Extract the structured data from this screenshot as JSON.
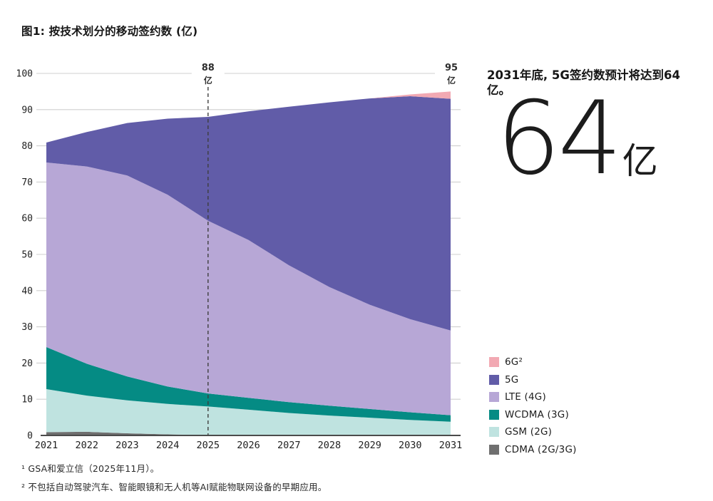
{
  "title": "图1: 按技术划分的移动签约数 (亿)",
  "highlight": {
    "headline": "2031年底, 5G签约数预计将达到64亿。",
    "big_number": "64",
    "big_unit": "亿"
  },
  "footnotes": [
    "¹ GSA和爱立信（2025年11月）。",
    "² 不包括自动驾驶汽车、智能眼镜和无人机等AI赋能物联网设备的早期应用。"
  ],
  "colors": {
    "sixg": "#F2A9B3",
    "fiveg": "#615CA8",
    "lte": "#B7A7D6",
    "wcdma": "#058B84",
    "gsm": "#BFE3E0",
    "cdma": "#6F6F6F",
    "axis": "#4B4B4B",
    "grid": "#CFCFCF",
    "dash": "#3D3D3D",
    "tick_text": "#1F1F1F"
  },
  "chart_data": {
    "type": "area",
    "stacked": true,
    "title": "图1: 按技术划分的移动签约数 (亿)",
    "xlabel": "",
    "ylabel": "",
    "ylim": [
      0,
      100
    ],
    "yticks": [
      0,
      10,
      20,
      30,
      40,
      50,
      60,
      70,
      80,
      90,
      100
    ],
    "grid": "ticks-both-sides, full line at 100",
    "legend_position": "right-bottom",
    "x": [
      2021,
      2022,
      2023,
      2024,
      2025,
      2026,
      2027,
      2028,
      2029,
      2030,
      2031
    ],
    "series": [
      {
        "key": "cdma",
        "name": "CDMA (2G/3G)",
        "color": "#6F6F6F",
        "values": [
          0.9,
          1.0,
          0.6,
          0.3,
          0.1,
          0,
          0,
          0,
          0,
          0,
          0
        ]
      },
      {
        "key": "gsm",
        "name": "GSM (2G)",
        "color": "#BFE3E0",
        "values": [
          11.9,
          10.0,
          9.1,
          8.4,
          7.9,
          7.1,
          6.2,
          5.5,
          4.9,
          4.3,
          3.8
        ]
      },
      {
        "key": "wcdma",
        "name": "WCDMA (3G)",
        "color": "#058B84",
        "values": [
          11.6,
          8.8,
          6.6,
          4.8,
          3.6,
          3.3,
          3.0,
          2.7,
          2.4,
          2.1,
          1.8
        ]
      },
      {
        "key": "lte",
        "name": "LTE (4G)",
        "color": "#B7A7D6",
        "values": [
          51.0,
          54.5,
          55.5,
          53.0,
          47.7,
          43.6,
          37.8,
          32.8,
          28.8,
          25.7,
          23.4
        ]
      },
      {
        "key": "fiveg",
        "name": "5G",
        "color": "#615CA8",
        "values": [
          5.5,
          9.5,
          14.5,
          21.0,
          28.7,
          35.5,
          43.8,
          51.0,
          57.0,
          61.6,
          64.0
        ]
      },
      {
        "key": "sixg",
        "name": "6G²",
        "color": "#F2A9B3",
        "values": [
          0,
          0,
          0,
          0,
          0,
          0,
          0,
          0,
          0,
          0.5,
          2.0
        ]
      }
    ],
    "totals": [
      80.9,
      83.8,
      86.3,
      87.5,
      88.0,
      89.5,
      90.8,
      92.0,
      93.1,
      94.2,
      95.0
    ],
    "legend_items": [
      {
        "label": "6G²",
        "color": "#F2A9B3"
      },
      {
        "label": "5G",
        "color": "#615CA8"
      },
      {
        "label": "LTE (4G)",
        "color": "#B7A7D6"
      },
      {
        "label": "WCDMA (3G)",
        "color": "#058B84"
      },
      {
        "label": "GSM (2G)",
        "color": "#BFE3E0"
      },
      {
        "label": "CDMA (2G/3G)",
        "color": "#6F6F6F"
      }
    ],
    "annotations": [
      {
        "x": 2025,
        "value": "88",
        "unit": "亿",
        "dashed_line": true
      },
      {
        "x": 2031,
        "value": "95",
        "unit": "亿",
        "dashed_line": false
      }
    ]
  }
}
